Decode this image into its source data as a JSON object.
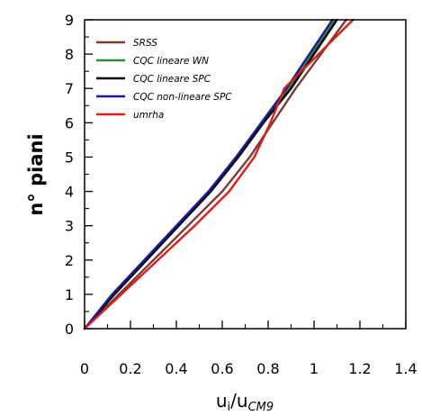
{
  "chart_data": {
    "type": "line",
    "title": "",
    "xlabel_main": "u",
    "xlabel_sub1": "i",
    "xlabel_mid": "/u",
    "xlabel_sub2": "CM9",
    "ylabel": "n° piani",
    "xlim": [
      0,
      1.4
    ],
    "ylim": [
      0,
      9
    ],
    "xticks": [
      "0",
      "0.2",
      "0.4",
      "0.6",
      "0.8",
      "1",
      "1.2",
      "1.4"
    ],
    "yticks": [
      "0",
      "1",
      "2",
      "3",
      "4",
      "5",
      "6",
      "7",
      "8",
      "9"
    ],
    "grid": false,
    "legend_position": "top-left",
    "y": [
      0,
      1,
      2,
      3,
      4,
      5,
      6,
      7,
      8,
      9
    ],
    "series": [
      {
        "name": "SRSS",
        "color": "#7b3b35",
        "x": [
          0,
          0.15,
          0.3,
          0.45,
          0.6,
          0.72,
          0.82,
          0.92,
          1.03,
          1.14
        ]
      },
      {
        "name": "CQC lineare WN",
        "color": "#2e8b3a",
        "x": [
          0,
          0.13,
          0.27,
          0.41,
          0.55,
          0.67,
          0.78,
          0.89,
          0.99,
          1.09
        ]
      },
      {
        "name": "CQC lineare SPC",
        "color": "#000000",
        "x": [
          0,
          0.13,
          0.27,
          0.41,
          0.55,
          0.67,
          0.78,
          0.9,
          1.0,
          1.1
        ]
      },
      {
        "name": "CQC non-lineare SPC",
        "color": "#1a1aa6",
        "x": [
          0,
          0.12,
          0.26,
          0.4,
          0.54,
          0.66,
          0.77,
          0.88,
          0.98,
          1.08
        ]
      },
      {
        "name": "umrha",
        "color": "#e01b1b",
        "x": [
          0,
          0.16,
          0.32,
          0.48,
          0.63,
          0.74,
          0.81,
          0.87,
          1.02,
          1.17
        ]
      }
    ]
  }
}
